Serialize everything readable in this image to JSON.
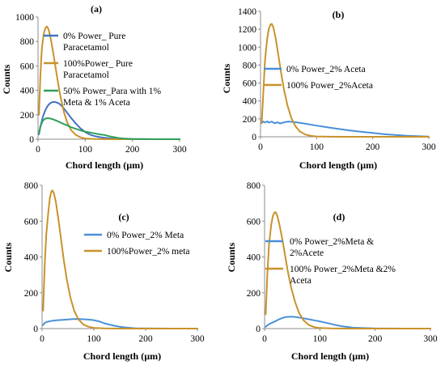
{
  "chart_data": [
    {
      "type": "line",
      "panel_label": "(a)",
      "xlabel": "Chord length (µm)",
      "ylabel": "Counts",
      "xlim": [
        0,
        300
      ],
      "ylim": [
        0,
        1000
      ],
      "xticks": [
        "0",
        "100",
        "200",
        "300"
      ],
      "yticks": [
        "0",
        "200",
        "400",
        "600",
        "800",
        "1000"
      ],
      "legend_position": "right",
      "series": [
        {
          "name_lines": [
            "0% Power_ Pure",
            "Paracetamol"
          ],
          "color": "#4472C4",
          "points": [
            [
              2,
              40
            ],
            [
              5,
              100
            ],
            [
              10,
              180
            ],
            [
              15,
              235
            ],
            [
              20,
              270
            ],
            [
              25,
              293
            ],
            [
              30,
              303
            ],
            [
              35,
              305
            ],
            [
              40,
              300
            ],
            [
              45,
              290
            ],
            [
              50,
              272
            ],
            [
              55,
              250
            ],
            [
              60,
              225
            ],
            [
              70,
              175
            ],
            [
              80,
              128
            ],
            [
              90,
              88
            ],
            [
              100,
              58
            ],
            [
              110,
              38
            ],
            [
              120,
              25
            ],
            [
              130,
              17
            ],
            [
              140,
              12
            ],
            [
              150,
              8
            ],
            [
              160,
              5
            ],
            [
              175,
              3
            ],
            [
              200,
              1
            ],
            [
              250,
              0
            ],
            [
              300,
              0
            ]
          ]
        },
        {
          "name_lines": [
            "100%Power_ Pure",
            "Paracetamol"
          ],
          "color": "#C9922A",
          "points": [
            [
              2,
              200
            ],
            [
              5,
              520
            ],
            [
              8,
              740
            ],
            [
              12,
              860
            ],
            [
              15,
              905
            ],
            [
              18,
              922
            ],
            [
              20,
              918
            ],
            [
              23,
              890
            ],
            [
              27,
              820
            ],
            [
              32,
              710
            ],
            [
              37,
              590
            ],
            [
              42,
              470
            ],
            [
              48,
              340
            ],
            [
              55,
              220
            ],
            [
              62,
              135
            ],
            [
              70,
              75
            ],
            [
              80,
              35
            ],
            [
              90,
              15
            ],
            [
              100,
              6
            ],
            [
              120,
              2
            ],
            [
              150,
              0
            ],
            [
              300,
              0
            ]
          ]
        },
        {
          "name_lines": [
            "50% Power_Para with 1%",
            "Meta & 1% Aceta"
          ],
          "color": "#2EA05A",
          "points": [
            [
              2,
              50
            ],
            [
              5,
              105
            ],
            [
              10,
              150
            ],
            [
              15,
              168
            ],
            [
              20,
              172
            ],
            [
              25,
              170
            ],
            [
              30,
              165
            ],
            [
              40,
              150
            ],
            [
              50,
              132
            ],
            [
              60,
              115
            ],
            [
              70,
              98
            ],
            [
              80,
              85
            ],
            [
              90,
              72
            ],
            [
              100,
              62
            ],
            [
              110,
              55
            ],
            [
              120,
              48
            ],
            [
              130,
              40
            ],
            [
              140,
              35
            ],
            [
              150,
              25
            ],
            [
              160,
              17
            ],
            [
              170,
              10
            ],
            [
              180,
              6
            ],
            [
              200,
              2
            ],
            [
              250,
              0
            ],
            [
              300,
              0
            ]
          ]
        }
      ]
    },
    {
      "type": "line",
      "panel_label": "(b)",
      "xlabel": "Chord length (µm)",
      "ylabel": "Counts",
      "xlim": [
        0,
        300
      ],
      "ylim": [
        0,
        1400
      ],
      "xticks": [
        "0",
        "100",
        "200",
        "300"
      ],
      "yticks": [
        "0",
        "200",
        "400",
        "600",
        "800",
        "1000",
        "1200",
        "1400"
      ],
      "legend_position": "right",
      "series": [
        {
          "name_lines": [
            "0% Power_2% Aceta"
          ],
          "color": "#4A90D9",
          "points": [
            [
              2,
              155
            ],
            [
              5,
              170
            ],
            [
              8,
              160
            ],
            [
              12,
              172
            ],
            [
              15,
              158
            ],
            [
              20,
              170
            ],
            [
              25,
              150
            ],
            [
              30,
              162
            ],
            [
              35,
              148
            ],
            [
              40,
              158
            ],
            [
              45,
              165
            ],
            [
              50,
              170
            ],
            [
              60,
              165
            ],
            [
              70,
              155
            ],
            [
              80,
              145
            ],
            [
              100,
              125
            ],
            [
              120,
              105
            ],
            [
              140,
              87
            ],
            [
              160,
              70
            ],
            [
              180,
              55
            ],
            [
              200,
              42
            ],
            [
              220,
              30
            ],
            [
              240,
              20
            ],
            [
              260,
              12
            ],
            [
              280,
              6
            ],
            [
              300,
              3
            ]
          ]
        },
        {
          "name_lines": [
            "100% Power_2%Aceta"
          ],
          "color": "#C9922A",
          "points": [
            [
              2,
              150
            ],
            [
              5,
              500
            ],
            [
              8,
              850
            ],
            [
              12,
              1100
            ],
            [
              15,
              1210
            ],
            [
              18,
              1255
            ],
            [
              20,
              1260
            ],
            [
              23,
              1220
            ],
            [
              27,
              1100
            ],
            [
              32,
              900
            ],
            [
              37,
              700
            ],
            [
              42,
              520
            ],
            [
              48,
              350
            ],
            [
              55,
              210
            ],
            [
              62,
              120
            ],
            [
              70,
              60
            ],
            [
              80,
              25
            ],
            [
              90,
              10
            ],
            [
              100,
              4
            ],
            [
              120,
              1
            ],
            [
              150,
              0
            ],
            [
              300,
              0
            ]
          ]
        }
      ]
    },
    {
      "type": "line",
      "panel_label": "(c)",
      "xlabel": "Chord length (µm)",
      "ylabel": "Counts",
      "xlim": [
        0,
        300
      ],
      "ylim": [
        0,
        800
      ],
      "xticks": [
        "0",
        "100",
        "200",
        "300"
      ],
      "yticks": [
        "0",
        "200",
        "400",
        "600",
        "800"
      ],
      "legend_position": "right",
      "series": [
        {
          "name_lines": [
            "0% Power_2% Meta"
          ],
          "color": "#4A90D9",
          "points": [
            [
              2,
              20
            ],
            [
              5,
              32
            ],
            [
              10,
              38
            ],
            [
              20,
              44
            ],
            [
              30,
              47
            ],
            [
              40,
              49
            ],
            [
              50,
              51
            ],
            [
              60,
              53
            ],
            [
              70,
              54
            ],
            [
              80,
              52
            ],
            [
              90,
              50
            ],
            [
              100,
              47
            ],
            [
              110,
              40
            ],
            [
              120,
              30
            ],
            [
              130,
              22
            ],
            [
              140,
              16
            ],
            [
              150,
              10
            ],
            [
              160,
              7
            ],
            [
              170,
              4
            ],
            [
              180,
              2
            ],
            [
              200,
              1
            ],
            [
              250,
              0
            ],
            [
              300,
              0
            ]
          ]
        },
        {
          "name_lines": [
            "100%Power_2% meta"
          ],
          "color": "#C9922A",
          "points": [
            [
              2,
              100
            ],
            [
              5,
              350
            ],
            [
              8,
              520
            ],
            [
              12,
              650
            ],
            [
              15,
              730
            ],
            [
              18,
              765
            ],
            [
              20,
              772
            ],
            [
              23,
              755
            ],
            [
              27,
              700
            ],
            [
              32,
              600
            ],
            [
              37,
              490
            ],
            [
              42,
              380
            ],
            [
              48,
              270
            ],
            [
              55,
              170
            ],
            [
              62,
              100
            ],
            [
              70,
              52
            ],
            [
              80,
              22
            ],
            [
              90,
              10
            ],
            [
              100,
              4
            ],
            [
              120,
              1
            ],
            [
              150,
              0
            ],
            [
              300,
              0
            ]
          ]
        }
      ]
    },
    {
      "type": "line",
      "panel_label": "(d)",
      "xlabel": "Chord length (µm)",
      "ylabel": "Counts",
      "xlim": [
        0,
        300
      ],
      "ylim": [
        0,
        800
      ],
      "xticks": [
        "0",
        "100",
        "200",
        "300"
      ],
      "yticks": [
        "0",
        "200",
        "400",
        "600",
        "800"
      ],
      "legend_position": "right",
      "series": [
        {
          "name_lines": [
            "0% Power_2%Meta &",
            "2%Acete"
          ],
          "color": "#4A90D9",
          "points": [
            [
              2,
              10
            ],
            [
              5,
              18
            ],
            [
              10,
              28
            ],
            [
              15,
              35
            ],
            [
              20,
              42
            ],
            [
              25,
              50
            ],
            [
              30,
              57
            ],
            [
              35,
              62
            ],
            [
              40,
              65
            ],
            [
              45,
              66
            ],
            [
              50,
              66
            ],
            [
              55,
              65
            ],
            [
              60,
              63
            ],
            [
              70,
              58
            ],
            [
              80,
              52
            ],
            [
              90,
              46
            ],
            [
              100,
              40
            ],
            [
              110,
              33
            ],
            [
              120,
              26
            ],
            [
              130,
              19
            ],
            [
              140,
              13
            ],
            [
              150,
              9
            ],
            [
              160,
              5
            ],
            [
              175,
              3
            ],
            [
              200,
              1
            ],
            [
              250,
              0
            ],
            [
              300,
              0
            ]
          ]
        },
        {
          "name_lines": [
            "100% Power_2%Meta &2%",
            "Aceta"
          ],
          "color": "#C9922A",
          "points": [
            [
              2,
              80
            ],
            [
              5,
              300
            ],
            [
              8,
              470
            ],
            [
              12,
              580
            ],
            [
              15,
              630
            ],
            [
              18,
              648
            ],
            [
              20,
              650
            ],
            [
              23,
              630
            ],
            [
              27,
              580
            ],
            [
              32,
              500
            ],
            [
              37,
              410
            ],
            [
              42,
              320
            ],
            [
              48,
              230
            ],
            [
              55,
              150
            ],
            [
              62,
              90
            ],
            [
              70,
              48
            ],
            [
              80,
              20
            ],
            [
              90,
              8
            ],
            [
              100,
              3
            ],
            [
              120,
              1
            ],
            [
              150,
              0
            ],
            [
              300,
              0
            ]
          ]
        }
      ]
    }
  ]
}
